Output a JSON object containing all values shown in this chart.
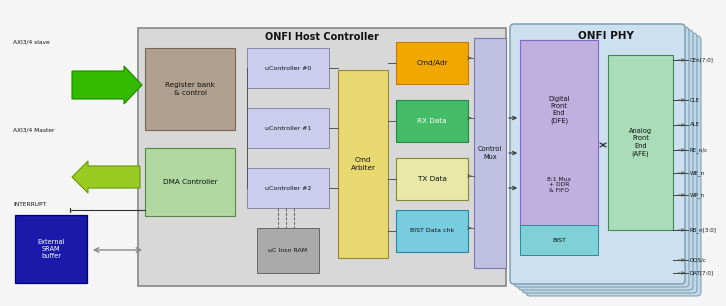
{
  "title": "ONFI Host Controller",
  "phy_title": "ONFI PHY",
  "fig_bg": "#f2f2f2",
  "signals_right": [
    [
      "CEn[7:0]",
      0.78
    ],
    [
      "CLE",
      0.7
    ],
    [
      "ALE",
      0.632
    ],
    [
      "RE_n/c",
      0.562
    ],
    [
      "WE_n",
      0.497
    ],
    [
      "WP_n",
      0.43
    ],
    [
      "RB_n[3:0]",
      0.318
    ],
    [
      "DQS/c",
      0.195
    ],
    [
      "DAT[7:0]",
      0.133
    ]
  ]
}
